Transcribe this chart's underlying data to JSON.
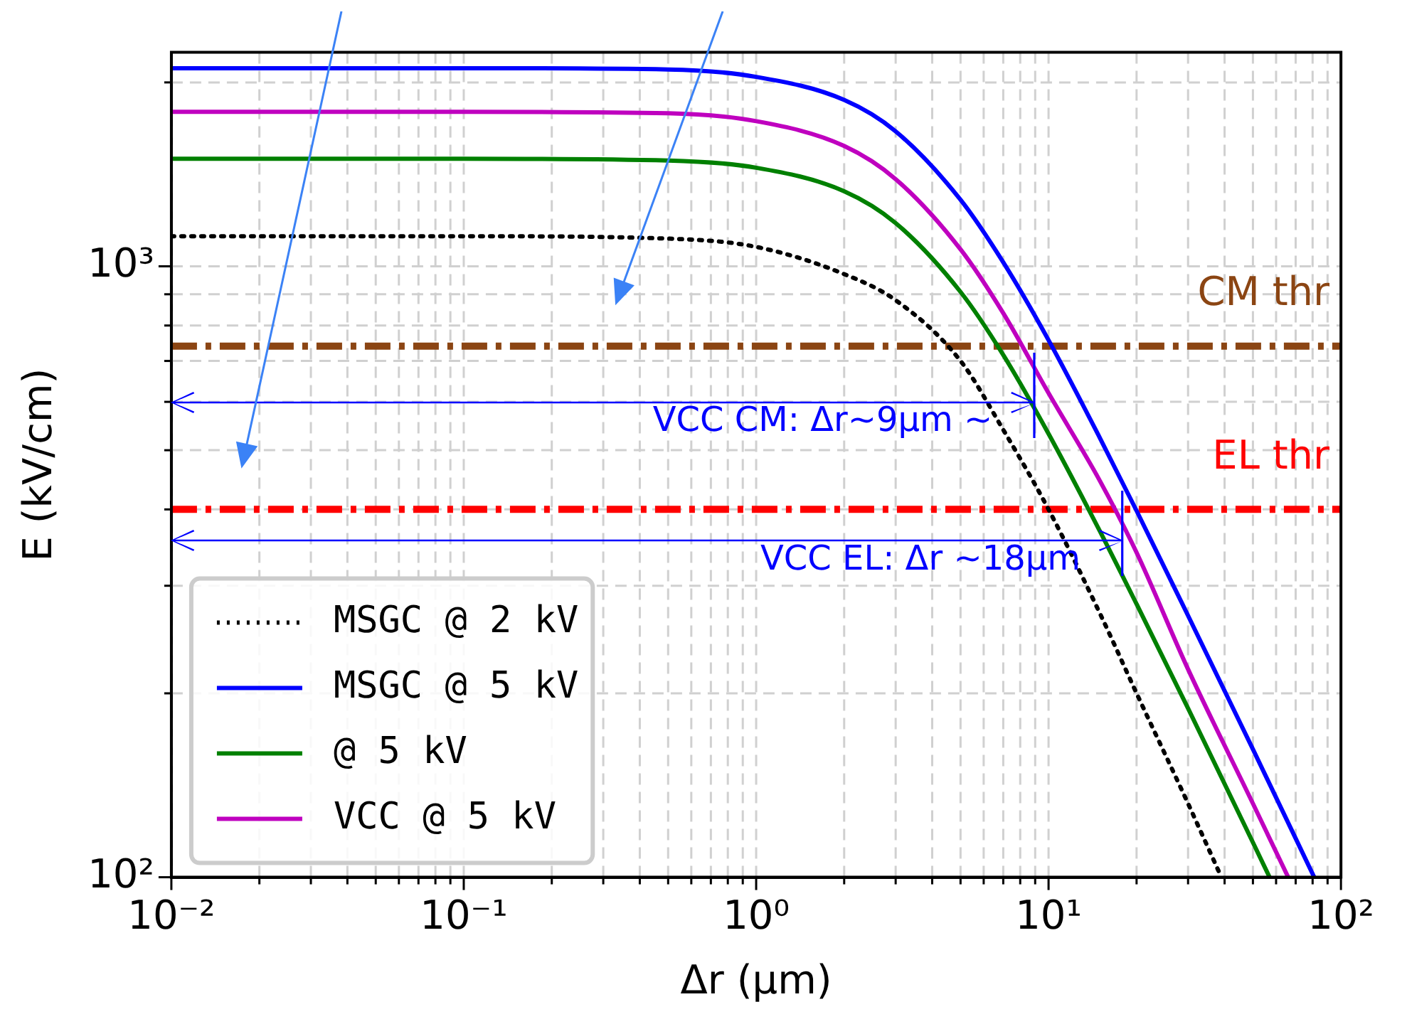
{
  "chart_data": {
    "type": "line",
    "xlabel": "Δr (μm)",
    "ylabel": "E (kV/cm)",
    "log": "xy",
    "grid": true,
    "legend": "bottom left",
    "xlim": [
      0.01,
      100
    ],
    "xticks": [
      {
        "value": 0.01,
        "label": "10⁻²"
      },
      {
        "value": 0.1,
        "label": "10⁻¹"
      },
      {
        "value": 1,
        "label": "10⁰"
      },
      {
        "value": 10,
        "label": "10¹"
      },
      {
        "value": 100,
        "label": "10²"
      }
    ],
    "ylim": [
      100,
      2240
    ],
    "yticks": [
      {
        "value": 100,
        "label": "10²"
      },
      {
        "value": 1000,
        "label": "10³"
      }
    ],
    "series": [
      {
        "name": "MSGC @ 2 kV",
        "color": "#000000",
        "line_style": "dotted",
        "x": [
          0.01,
          0.1,
          0.5,
          1,
          2,
          3,
          5,
          7,
          10,
          15,
          20,
          30,
          39
        ],
        "values": [
          1120,
          1120,
          1110,
          1076,
          971,
          880,
          700,
          540,
          400,
          270,
          200,
          132,
          100
        ]
      },
      {
        "name": "MSGC @ 5 kV",
        "color": "#0000ff",
        "line_style": "solid",
        "x": [
          0.01,
          0.1,
          0.5,
          1,
          2,
          3,
          5,
          7,
          10,
          15,
          20,
          30,
          50,
          81
        ],
        "values": [
          2110,
          2110,
          2100,
          2042,
          1872,
          1663,
          1285,
          1015,
          757,
          523,
          398,
          268,
          162,
          100
        ]
      },
      {
        "name": "@ 5 kV",
        "color": "#008000",
        "line_style": "solid",
        "x": [
          0.01,
          0.1,
          0.5,
          1,
          2,
          3,
          5,
          7,
          10,
          15,
          20,
          30,
          50,
          57
        ],
        "values": [
          1500,
          1500,
          1490,
          1450,
          1327,
          1177,
          908,
          716,
          532,
          368,
          280,
          189,
          114,
          100
        ]
      },
      {
        "name": "VCC @ 5 kV",
        "color": "#bf00bf",
        "line_style": "solid",
        "x": [
          0.01,
          0.1,
          0.5,
          1,
          2,
          3,
          5,
          7,
          10,
          15,
          20,
          30,
          50,
          66
        ],
        "values": [
          1790,
          1790,
          1780,
          1728,
          1574,
          1389,
          1066,
          838,
          620,
          445,
          340,
          219,
          132,
          100
        ]
      }
    ],
    "ref_lines": [
      {
        "axis": "y",
        "value": 740,
        "label": "CM thr",
        "color": "#8b4513",
        "line_style": "dashdot"
      },
      {
        "axis": "y",
        "value": 400,
        "label": "EL thr",
        "color": "#ff0000",
        "line_style": "dashdot"
      }
    ],
    "annotations": [
      {
        "text": "VCC CM: Δr~9μm ~",
        "x": 9,
        "y": 600
      },
      {
        "text": "VCC EL: Δr ~18μm",
        "x": 18,
        "y": 355
      }
    ]
  }
}
